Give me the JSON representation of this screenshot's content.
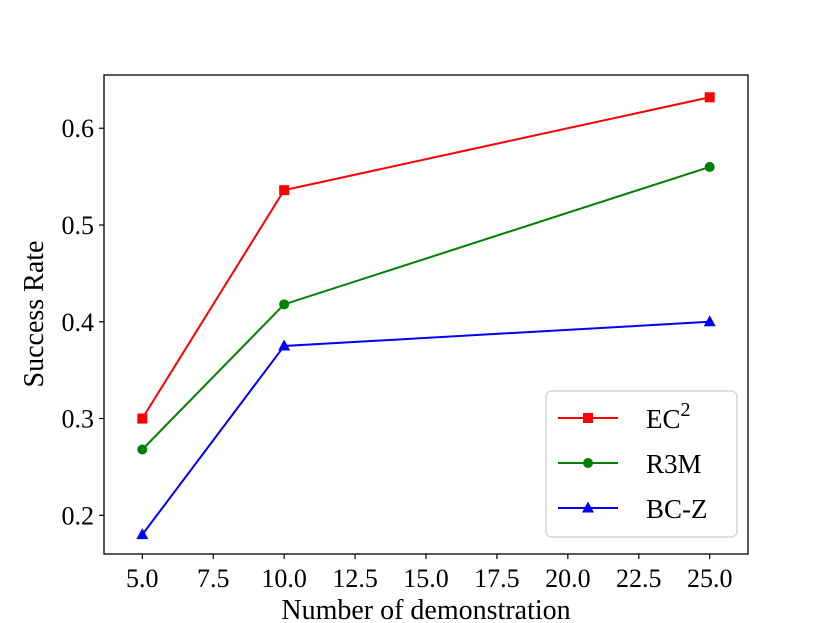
{
  "chart_data": {
    "type": "line",
    "xlabel": "Number of demonstration",
    "ylabel": "Success Rate",
    "xlim": [
      3.65,
      26.35
    ],
    "ylim": [
      0.16,
      0.655
    ],
    "xticks": [
      "5.0",
      "7.5",
      "10.0",
      "12.5",
      "15.0",
      "17.5",
      "20.0",
      "22.5",
      "25.0"
    ],
    "yticks": [
      "0.2",
      "0.3",
      "0.4",
      "0.5",
      "0.6"
    ],
    "x": [
      5,
      10,
      25
    ],
    "grid": false,
    "legend": "bottom-right",
    "series": [
      {
        "name": "EC",
        "name_superscript": "2",
        "color": "#ff0000",
        "marker": "square",
        "values": [
          0.3,
          0.536,
          0.632
        ]
      },
      {
        "name": "R3M",
        "color": "#008000",
        "marker": "circle",
        "values": [
          0.268,
          0.418,
          0.56
        ]
      },
      {
        "name": "BC-Z",
        "color": "#0000ff",
        "marker": "triangle",
        "values": [
          0.18,
          0.375,
          0.4
        ]
      }
    ]
  }
}
